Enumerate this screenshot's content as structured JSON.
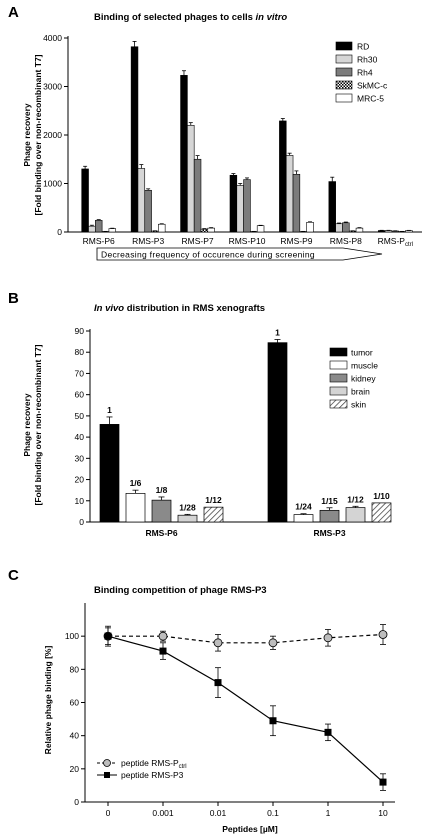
{
  "chart_data": [
    {
      "panel": "A",
      "type": "bar",
      "title_main": "Binding of selected phages to cells ",
      "title_italic": "in vitro",
      "ylabel_line1": "Phage recovery",
      "ylabel_line2": "[Fold binding over non-recombinant T7]",
      "ylim": [
        0,
        4000
      ],
      "yticks": [
        0,
        1000,
        2000,
        3000,
        4000
      ],
      "categories": [
        "RMS-P6",
        "RMS-P3",
        "RMS-P7",
        "RMS-P10",
        "RMS-P9",
        "RMS-P8",
        "RMS-P"
      ],
      "category_subscript": [
        "",
        "",
        "",
        "",
        "",
        "",
        "ctrl"
      ],
      "arrow_label": "Decreasing frequency of occurence during screening",
      "legend_position": "top-right",
      "series": [
        {
          "name": "RD",
          "values": [
            1300,
            3820,
            3230,
            1170,
            2290,
            1040,
            30
          ],
          "errors": [
            55,
            110,
            95,
            35,
            50,
            90,
            5
          ]
        },
        {
          "name": "Rh30",
          "values": [
            120,
            1310,
            2200,
            960,
            1580,
            170,
            30
          ],
          "errors": [
            20,
            80,
            55,
            40,
            45,
            15,
            5
          ]
        },
        {
          "name": "Rh4",
          "values": [
            240,
            860,
            1500,
            1080,
            1190,
            190,
            20
          ],
          "errors": [
            15,
            30,
            75,
            35,
            70,
            15,
            5
          ]
        },
        {
          "name": "SkMC-c",
          "values": [
            10,
            20,
            60,
            10,
            10,
            20,
            10
          ],
          "errors": [
            3,
            5,
            10,
            3,
            3,
            5,
            3
          ]
        },
        {
          "name": "MRC-5",
          "values": [
            70,
            160,
            80,
            130,
            200,
            80,
            30
          ],
          "errors": [
            8,
            10,
            10,
            8,
            10,
            10,
            4
          ]
        }
      ],
      "colors": {
        "RD": "#000000",
        "Rh30": "#d6d6d6",
        "Rh4": "#7c7c7c",
        "SkMC-c": "checker",
        "MRC-5": "#ffffff"
      }
    },
    {
      "panel": "B",
      "type": "bar",
      "title_italic": "In vivo",
      "title_main": " distribution in RMS xenografts",
      "ylabel_line1": "Phage recovery",
      "ylabel_line2": "[Fold binding over non-recombinant T7]",
      "ylim": [
        0,
        90
      ],
      "yticks": [
        0,
        10,
        20,
        30,
        40,
        50,
        60,
        70,
        80,
        90
      ],
      "categories": [
        "RMS-P6",
        "RMS-P3"
      ],
      "legend_position": "top-right",
      "series": [
        {
          "name": "tumor",
          "values": [
            46,
            84.5
          ],
          "errors": [
            3.5,
            1.5
          ],
          "labels": [
            "1",
            "1"
          ]
        },
        {
          "name": "muscle",
          "values": [
            13.5,
            3.5
          ],
          "errors": [
            1.5,
            0.4
          ],
          "labels": [
            "1/6",
            "1/24"
          ]
        },
        {
          "name": "kidney",
          "values": [
            10.3,
            5.5
          ],
          "errors": [
            1.5,
            1.2
          ],
          "labels": [
            "1/8",
            "1/15"
          ]
        },
        {
          "name": "brain",
          "values": [
            3.2,
            6.8
          ],
          "errors": [
            0.4,
            0.6
          ],
          "labels": [
            "1/28",
            "1/12"
          ]
        },
        {
          "name": "skin",
          "values": [
            7,
            9
          ],
          "errors": [
            0,
            0
          ],
          "labels": [
            "1/12",
            "1/10"
          ]
        }
      ],
      "colors": {
        "tumor": "#000000",
        "muscle": "#ffffff",
        "kidney": "#8a8a8a",
        "brain": "#d4d4d4",
        "skin": "hatch"
      }
    },
    {
      "panel": "C",
      "type": "line",
      "title": "Binding competition of phage RMS-P3",
      "xlabel_main": "Peptides [",
      "xlabel_unit": "µM",
      "xlabel_end": "]",
      "ylabel": "Relative phage binding [%]",
      "ylim": [
        0,
        120
      ],
      "yticks": [
        0,
        20,
        40,
        60,
        80,
        100
      ],
      "x": [
        "0",
        "0.001",
        "0.01",
        "0.1",
        "1",
        "10"
      ],
      "legend_position": "bottom-left",
      "series": [
        {
          "name": "peptide RMS-P",
          "name_subscript": "ctrl",
          "marker": "circle",
          "style": "dashed",
          "values": [
            100,
            100,
            96,
            96,
            99,
            101
          ],
          "errors": [
            6,
            3,
            5,
            4,
            5,
            6
          ]
        },
        {
          "name": "peptide RMS-P3",
          "marker": "square",
          "style": "solid",
          "values": [
            100,
            91,
            72,
            49,
            42,
            12
          ],
          "errors": [
            5,
            5,
            9,
            9,
            5,
            5
          ]
        }
      ]
    }
  ],
  "panel_letters": [
    "A",
    "B",
    "C"
  ]
}
